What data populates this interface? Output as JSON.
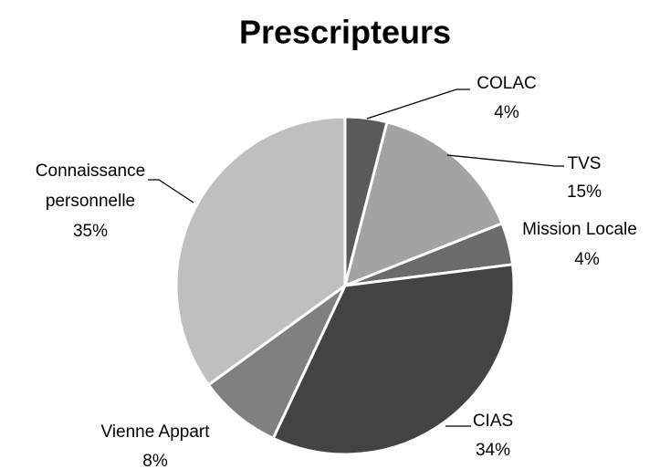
{
  "chart_data": {
    "type": "pie",
    "title": "Prescripteurs",
    "categories": [
      "COLAC",
      "TVS",
      "Mission Locale",
      "CIAS",
      "Vienne Appart",
      "Connaissance personnelle"
    ],
    "values": [
      4,
      15,
      4,
      34,
      8,
      35
    ],
    "value_labels": [
      "4%",
      "15%",
      "4%",
      "34%",
      "8%",
      "35%"
    ],
    "colors": [
      "#5a5a5a",
      "#a3a3a3",
      "#6b6b6b",
      "#434343",
      "#808080",
      "#bfbfbf"
    ]
  }
}
